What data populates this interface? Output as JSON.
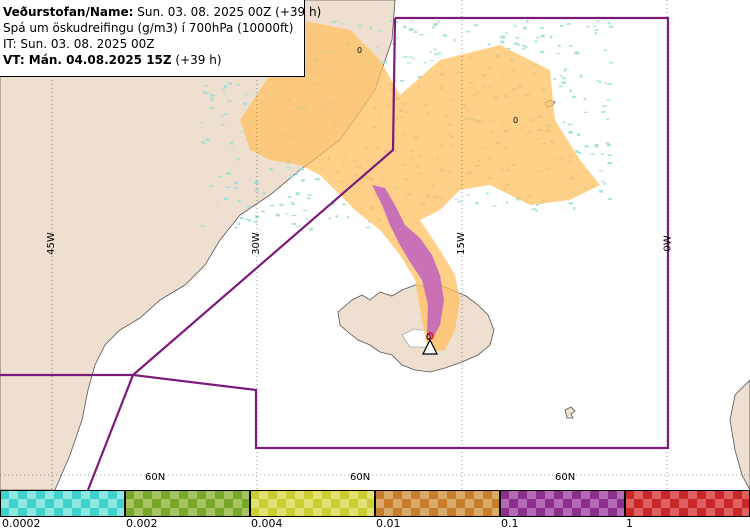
{
  "info": {
    "line1_bold": "Veðurstofan/Name:",
    "line1_rest": " Sun. 03. 08. 2025 00Z (+39 h)",
    "line2": "Spá um öskudreifingu (g/m3) í 700hPa (10000ft)",
    "line3": "IT: Sun. 03. 08. 2025 00Z",
    "line4_bold": "VT: Mán. 04.08.2025 15Z",
    "line4_rest": " (+39 h)"
  },
  "map": {
    "longitude_labels": [
      "45W",
      "30W",
      "15W",
      "0W"
    ],
    "latitude_labels": [
      "60N",
      "60N",
      "60N"
    ],
    "contour_labels": [
      "0",
      "0",
      "0"
    ],
    "colors": {
      "land": "#efdfd0",
      "sea": "#ffffff",
      "region_border": "#7b1a7b",
      "ash_low": "#ffc060",
      "ash_high": "#c060c0",
      "sparse_cyan": "#9ee0d6"
    }
  },
  "legend": {
    "ticks": [
      "0.0002",
      "0.002",
      "0.004",
      "0.01",
      "0.1",
      "1"
    ],
    "bins": [
      {
        "color": "#3fd2cc",
        "alt": "#8ee7e2"
      },
      {
        "color": "#79a72a",
        "alt": "#a7c463"
      },
      {
        "color": "#cccc33",
        "alt": "#e1e174"
      },
      {
        "color": "#c67d2c",
        "alt": "#dcaa68"
      },
      {
        "color": "#8a2f8a",
        "alt": "#b56ab5"
      },
      {
        "color": "#c82727",
        "alt": "#e06060"
      }
    ]
  }
}
